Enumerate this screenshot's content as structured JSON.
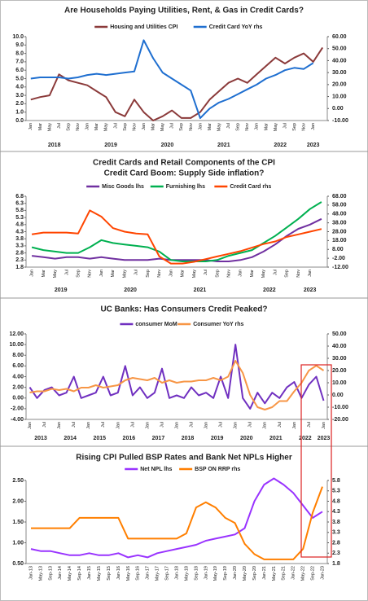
{
  "chart_data": [
    {
      "type": "line",
      "title": "Are Households Paying Utilities, Rent, & Gas in Credit Cards?",
      "categories": [
        "Jan",
        "Mar",
        "May",
        "Jul",
        "Sep",
        "Nov",
        "Jan",
        "Mar",
        "May",
        "Jul",
        "Sep",
        "Nov",
        "Jan",
        "Mar",
        "May",
        "Jul",
        "Sep",
        "Nov",
        "Jan",
        "Mar",
        "May",
        "Jul",
        "Sep",
        "Nov",
        "Jan",
        "Mar",
        "May",
        "Jul",
        "Sep",
        "Nov",
        "Jan",
        null
      ],
      "x_groups": [
        "2018",
        "2019",
        "2020",
        "2021",
        "2022",
        "2023"
      ],
      "ylim": [
        0,
        10
      ],
      "yticks": [
        {
          "value": 0,
          "label": "0.0"
        },
        {
          "value": 1,
          "label": "1.0"
        },
        {
          "value": 2,
          "label": "2.0"
        },
        {
          "value": 3,
          "label": "3.0"
        },
        {
          "value": 4,
          "label": "4.0"
        },
        {
          "value": 5,
          "label": "5.0"
        },
        {
          "value": 6,
          "label": "6.0"
        },
        {
          "value": 7,
          "label": "7.0"
        },
        {
          "value": 8,
          "label": "8.0"
        },
        {
          "value": 9,
          "label": "9.0"
        },
        {
          "value": 10,
          "label": "10.0"
        }
      ],
      "y2lim": [
        -10,
        60
      ],
      "y2ticks": [
        {
          "value": -10,
          "label": "-10.00"
        },
        {
          "value": 0,
          "label": "0.00"
        },
        {
          "value": 10,
          "label": "10.00"
        },
        {
          "value": 20,
          "label": "20.00"
        },
        {
          "value": 30,
          "label": "30.00"
        },
        {
          "value": 40,
          "label": "40.00"
        },
        {
          "value": 50,
          "label": "50.00"
        },
        {
          "value": 60,
          "label": "60.00"
        }
      ],
      "series": [
        {
          "name": "Housing and Utilities CPI",
          "color": "#8b3a3a",
          "values": [
            2.5,
            2.8,
            3.0,
            5.5,
            4.8,
            4.5,
            4.2,
            3.5,
            2.8,
            1.0,
            0.5,
            2.5,
            1.0,
            0.0,
            0.5,
            1.2,
            0.3,
            0.3,
            1.0,
            2.5,
            3.5,
            4.5,
            5.0,
            4.5,
            5.5,
            6.5,
            7.5,
            6.8,
            7.5,
            8.0,
            7.0,
            8.7
          ]
        },
        {
          "name": "Credit Card YoY rhs",
          "color": "#1f6fd0",
          "axis": "y2",
          "values": [
            25,
            26,
            26,
            26,
            25,
            26,
            28,
            29,
            28,
            29,
            30,
            31,
            57,
            42,
            30,
            25,
            20,
            15,
            -8,
            0,
            5,
            8,
            12,
            16,
            20,
            25,
            28,
            32,
            34,
            33,
            38,
            null
          ]
        }
      ]
    },
    {
      "type": "line",
      "title": "Credit Cards and Retail Components of the CPI",
      "subtitle": "Credit Card Boom: Supply Side inflation?",
      "categories": [
        "Jan",
        "Mar",
        "May",
        "Jul",
        "Sep",
        "Nov",
        "Jan",
        "Mar",
        "May",
        "Jul",
        "Sep",
        "Nov",
        "Jan",
        "Mar",
        "May",
        "Jul",
        "Sep",
        "Nov",
        "Jan",
        "Mar",
        "May",
        "Jul",
        "Sep",
        "Nov",
        "Jan",
        null
      ],
      "x_groups": [
        "2019",
        "2020",
        "2021",
        "2022",
        "2023"
      ],
      "ylim": [
        1.8,
        6.8
      ],
      "yticks": [
        1.8,
        2.3,
        2.8,
        3.3,
        3.8,
        4.3,
        4.8,
        5.3,
        5.8,
        6.3,
        6.8
      ],
      "y2lim": [
        -12,
        68
      ],
      "y2ticks": [
        {
          "value": -12,
          "label": "-12.00"
        },
        {
          "value": -2,
          "label": "-2.00"
        },
        {
          "value": 8,
          "label": "8.00"
        },
        {
          "value": 18,
          "label": "18.00"
        },
        {
          "value": 28,
          "label": "28.00"
        },
        {
          "value": 38,
          "label": "38.00"
        },
        {
          "value": 48,
          "label": "48.00"
        },
        {
          "value": 58,
          "label": "58.00"
        },
        {
          "value": 68,
          "label": "68.00"
        }
      ],
      "series": [
        {
          "name": "Misc Goods lhs",
          "color": "#7030a0",
          "values": [
            2.6,
            2.5,
            2.4,
            2.5,
            2.5,
            2.4,
            2.5,
            2.4,
            2.3,
            2.3,
            2.3,
            2.4,
            2.3,
            2.3,
            2.3,
            2.3,
            2.2,
            2.2,
            2.3,
            2.5,
            2.9,
            3.4,
            4.0,
            4.5,
            4.8,
            5.2
          ]
        },
        {
          "name": "Furnishing lhs",
          "color": "#00b050",
          "values": [
            3.2,
            3.0,
            2.9,
            2.8,
            2.8,
            3.2,
            3.7,
            3.5,
            3.4,
            3.3,
            3.2,
            2.9,
            2.3,
            2.2,
            2.2,
            2.2,
            2.3,
            2.6,
            2.8,
            3.0,
            3.5,
            4.0,
            4.6,
            5.2,
            5.9,
            6.4
          ]
        },
        {
          "name": "Credit Card rhs",
          "color": "#ff4500",
          "axis": "y2",
          "values": [
            25,
            27,
            27,
            27,
            26,
            52,
            45,
            32,
            28,
            26,
            25,
            0,
            -8,
            -8,
            -6,
            -3,
            0,
            3,
            6,
            10,
            14,
            17,
            22,
            25,
            28,
            31
          ]
        }
      ]
    },
    {
      "type": "line",
      "title": "UC Banks: Has Consumers Credit Peaked?",
      "categories": [
        "Jan",
        null,
        "Jul",
        null,
        "Jan",
        null,
        "Jul",
        null,
        "Jan",
        null,
        "Jul",
        null,
        "Jan",
        null,
        "Jul",
        null,
        "Jan",
        null,
        "Jul",
        null,
        "Jan",
        null,
        "Jul",
        null,
        "Jan",
        null,
        "Jul",
        null,
        "Jan",
        null,
        "Jul",
        null,
        "Jan",
        null,
        "Jul",
        null,
        "Jan",
        null,
        "Jul",
        null,
        "Jan"
      ],
      "x_groups": [
        "2013",
        "2014",
        "2015",
        "2016",
        "2017",
        "2018",
        "2019",
        "2020",
        "2021",
        "2022",
        "2023"
      ],
      "ylim": [
        -4,
        12
      ],
      "yticks": [
        {
          "value": -4,
          "label": "-4.00"
        },
        {
          "value": -2,
          "label": "-2.00"
        },
        {
          "value": 0,
          "label": "0.00"
        },
        {
          "value": 2,
          "label": "2.00"
        },
        {
          "value": 4,
          "label": "4.00"
        },
        {
          "value": 6,
          "label": "6.00"
        },
        {
          "value": 8,
          "label": "8.00"
        },
        {
          "value": 10,
          "label": "10.00"
        },
        {
          "value": 12,
          "label": "12.00"
        }
      ],
      "y2lim": [
        -20,
        50
      ],
      "y2ticks": [
        {
          "value": -20,
          "label": "-20.00"
        },
        {
          "value": -10,
          "label": "-10.00"
        },
        {
          "value": 0,
          "label": "0.00"
        },
        {
          "value": 10,
          "label": "10.00"
        },
        {
          "value": 20,
          "label": "20.00"
        },
        {
          "value": 30,
          "label": "30.00"
        },
        {
          "value": 40,
          "label": "40.00"
        },
        {
          "value": 50,
          "label": "50.00"
        }
      ],
      "series": [
        {
          "name": "consumer MoM",
          "color": "#7030c0",
          "values": [
            2,
            0,
            1.5,
            2,
            0.5,
            1,
            4,
            0,
            0.5,
            1,
            4,
            0.5,
            1,
            6,
            0.5,
            2,
            0,
            1,
            5.5,
            0,
            0.5,
            0,
            2,
            0.5,
            1,
            0,
            4,
            0,
            10,
            0,
            -2,
            1,
            -1,
            1,
            0,
            2,
            3,
            0,
            2.5,
            4,
            -0.5
          ]
        },
        {
          "name": "Consumer YoY rhs",
          "color": "#f79646",
          "axis": "y2",
          "values": [
            2,
            3,
            3,
            5,
            4,
            5,
            3,
            6,
            6,
            8,
            6,
            7,
            8,
            12,
            14,
            13,
            12,
            14,
            10,
            12,
            10,
            11,
            11,
            12,
            12,
            14,
            12,
            15,
            28,
            18,
            0,
            -10,
            -12,
            -10,
            -5,
            -5,
            3,
            10,
            20,
            24,
            20
          ]
        }
      ]
    },
    {
      "type": "line",
      "title": "Rising CPI Pulled BSP Rates and Bank Net NPLs Higher",
      "categories": [
        "Jan-13",
        "May-13",
        "Sep-13",
        "Jan-14",
        "May-14",
        "Sep-14",
        "Jan-15",
        "May-15",
        "Sep-15",
        "Jan-16",
        "May-16",
        "Sep-16",
        "Jan-17",
        "May-17",
        "Sep-17",
        "Jan-18",
        "May-18",
        "Sep-18",
        "Jan-19",
        "May-19",
        "Sep-19",
        "Jan-20",
        "May-20",
        "Sep-20",
        "Jan-21",
        "May-21",
        "Sep-21",
        "Jan-22",
        "May-22",
        "Sep-22",
        "Jan-23"
      ],
      "ylim": [
        0.5,
        2.5
      ],
      "yticks": [
        {
          "value": 0.5,
          "label": "0.50"
        },
        {
          "value": 1,
          "label": "1.00"
        },
        {
          "value": 1.5,
          "label": "1.50"
        },
        {
          "value": 2,
          "label": "2.00"
        },
        {
          "value": 2.5,
          "label": "2.50"
        }
      ],
      "y2lim": [
        1.8,
        5.8
      ],
      "y2ticks": [
        1.8,
        2.3,
        2.8,
        3.3,
        3.8,
        4.3,
        4.8,
        5.3,
        5.8
      ],
      "series": [
        {
          "name": "Net NPL lhs",
          "color": "#9933ff",
          "values": [
            0.85,
            0.8,
            0.8,
            0.75,
            0.7,
            0.7,
            0.75,
            0.7,
            0.7,
            0.75,
            0.65,
            0.7,
            0.65,
            0.75,
            0.8,
            0.85,
            0.9,
            0.95,
            1.05,
            1.1,
            1.15,
            1.2,
            1.35,
            2.0,
            2.4,
            2.55,
            2.4,
            2.2,
            1.9,
            1.6,
            1.75
          ]
        },
        {
          "name": "BSP ON RRP rhs",
          "color": "#ff7f00",
          "axis": "y2",
          "values": [
            3.5,
            3.5,
            3.5,
            3.5,
            3.5,
            4.0,
            4.0,
            4.0,
            4.0,
            4.0,
            3.0,
            3.0,
            3.0,
            3.0,
            3.0,
            3.0,
            3.25,
            4.5,
            4.75,
            4.5,
            4.0,
            3.75,
            2.75,
            2.25,
            2.0,
            2.0,
            2.0,
            2.0,
            2.5,
            4.25,
            5.5
          ]
        }
      ]
    }
  ]
}
